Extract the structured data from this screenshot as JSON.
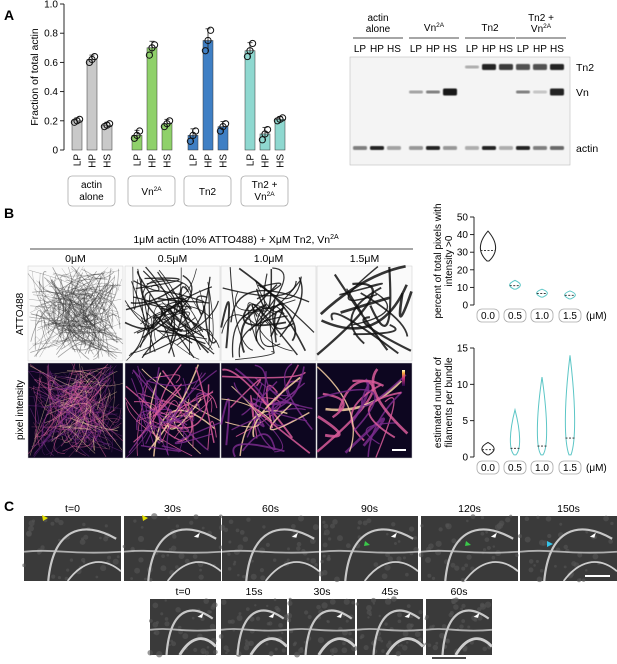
{
  "panel_labels": {
    "a": "A",
    "b": "B",
    "c": "C"
  },
  "chart_data": [
    {
      "type": "bar",
      "ylabel": "Fraction of total actin",
      "ylim": [
        0,
        1.0
      ],
      "yticks": [
        "0",
        "0.2",
        "0.4",
        "0.6",
        "0.8",
        "1.0"
      ],
      "ytick_values": [
        0,
        0.2,
        0.4,
        0.6,
        0.8,
        1.0
      ],
      "categories": [
        "LP",
        "HP",
        "HS",
        "LP",
        "HP",
        "HS",
        "LP",
        "HP",
        "HS",
        "LP",
        "HP",
        "HS"
      ],
      "groups": [
        {
          "label_lines": [
            "actin",
            "alone"
          ],
          "color": "#c9c9c9",
          "values": [
            0.2,
            0.62,
            0.17
          ],
          "points": [
            [
              0.19,
              0.2,
              0.21
            ],
            [
              0.6,
              0.62,
              0.64
            ],
            [
              0.16,
              0.17,
              0.18
            ]
          ]
        },
        {
          "label_lines": [
            "Vn",
            "2A"
          ],
          "color": "#8fd16a",
          "values": [
            0.1,
            0.7,
            0.18
          ],
          "points": [
            [
              0.08,
              0.1,
              0.13
            ],
            [
              0.65,
              0.7,
              0.72
            ],
            [
              0.16,
              0.18,
              0.2
            ]
          ]
        },
        {
          "label_lines": [
            "Tn2"
          ],
          "color": "#3f7fc4",
          "values": [
            0.1,
            0.75,
            0.16
          ],
          "points": [
            [
              0.06,
              0.1,
              0.13
            ],
            [
              0.68,
              0.75,
              0.82
            ],
            [
              0.13,
              0.16,
              0.18
            ]
          ]
        },
        {
          "label_lines": [
            "Tn2 +",
            "Vn",
            "2A"
          ],
          "color": "#8fd8d0",
          "values": [
            0.68,
            0.11,
            0.21
          ],
          "points": [
            [
              0.64,
              0.68,
              0.73
            ],
            [
              0.07,
              0.11,
              0.14
            ],
            [
              0.2,
              0.21,
              0.22
            ]
          ]
        }
      ]
    },
    {
      "type": "violin",
      "ylabel_lines": [
        "percent of total pixels with",
        "intensity >0"
      ],
      "ylim": [
        0,
        50
      ],
      "yticks": [
        "0",
        "10",
        "20",
        "30",
        "40",
        "50"
      ],
      "ytick_values": [
        0,
        10,
        20,
        30,
        40,
        50
      ],
      "categories": [
        "0.0",
        "0.5",
        "1.0",
        "1.5"
      ],
      "unit": "(μM)",
      "violins": [
        {
          "min": 25,
          "max": 42,
          "median": 31,
          "color": "#222222"
        },
        {
          "min": 9,
          "max": 14,
          "median": 11,
          "color": "#5cc6c6"
        },
        {
          "min": 4.5,
          "max": 9,
          "median": 6.5,
          "color": "#5cc6c6"
        },
        {
          "min": 3.5,
          "max": 8,
          "median": 5.5,
          "color": "#5cc6c6"
        }
      ]
    },
    {
      "type": "violin",
      "ylabel_lines": [
        "estimated number of",
        "filaments per bundle"
      ],
      "ylim": [
        0,
        15
      ],
      "yticks": [
        "0",
        "5",
        "10",
        "15"
      ],
      "ytick_values": [
        0,
        5,
        10,
        15
      ],
      "categories": [
        "0.0",
        "0.5",
        "1.0",
        "1.5"
      ],
      "unit": "(μM)",
      "violins": [
        {
          "min": 0.3,
          "max": 2,
          "median": 1,
          "color": "#222222"
        },
        {
          "min": 0.3,
          "max": 6.5,
          "median": 1.2,
          "color": "#5cc6c6"
        },
        {
          "min": 0.3,
          "max": 11,
          "median": 1.5,
          "color": "#5cc6c6"
        },
        {
          "min": 0.3,
          "max": 14,
          "median": 2.6,
          "color": "#5cc6c6"
        }
      ]
    }
  ],
  "gel": {
    "group_labels": [
      {
        "lines": [
          "actin",
          "alone"
        ]
      },
      {
        "lines": [
          "Vn",
          "2A"
        ]
      },
      {
        "lines": [
          "Tn2"
        ]
      },
      {
        "lines": [
          "Tn2 +",
          "Vn",
          "2A"
        ]
      }
    ],
    "lane_labels": [
      "LP",
      "HP",
      "HS",
      "LP",
      "HP",
      "HS",
      "LP",
      "HP",
      "HS",
      "LP",
      "HP",
      "HS"
    ],
    "band_labels": [
      "Tn2",
      "Vn",
      "actin"
    ]
  },
  "microscopy": {
    "condition_header": "1μM actin (10% ATTO488) + XμM Tn2, Vn",
    "condition_superscript": "2A",
    "concentrations": [
      "0μM",
      "0.5μM",
      "1.0μM",
      "1.5μM"
    ],
    "row_labels": [
      "ATTO488",
      "pixel intensity"
    ]
  },
  "timelapse": {
    "row1_times": [
      "t=0",
      "30s",
      "60s",
      "90s",
      "120s",
      "150s"
    ],
    "row2_times": [
      "t=0",
      "15s",
      "30s",
      "45s",
      "60s"
    ]
  }
}
